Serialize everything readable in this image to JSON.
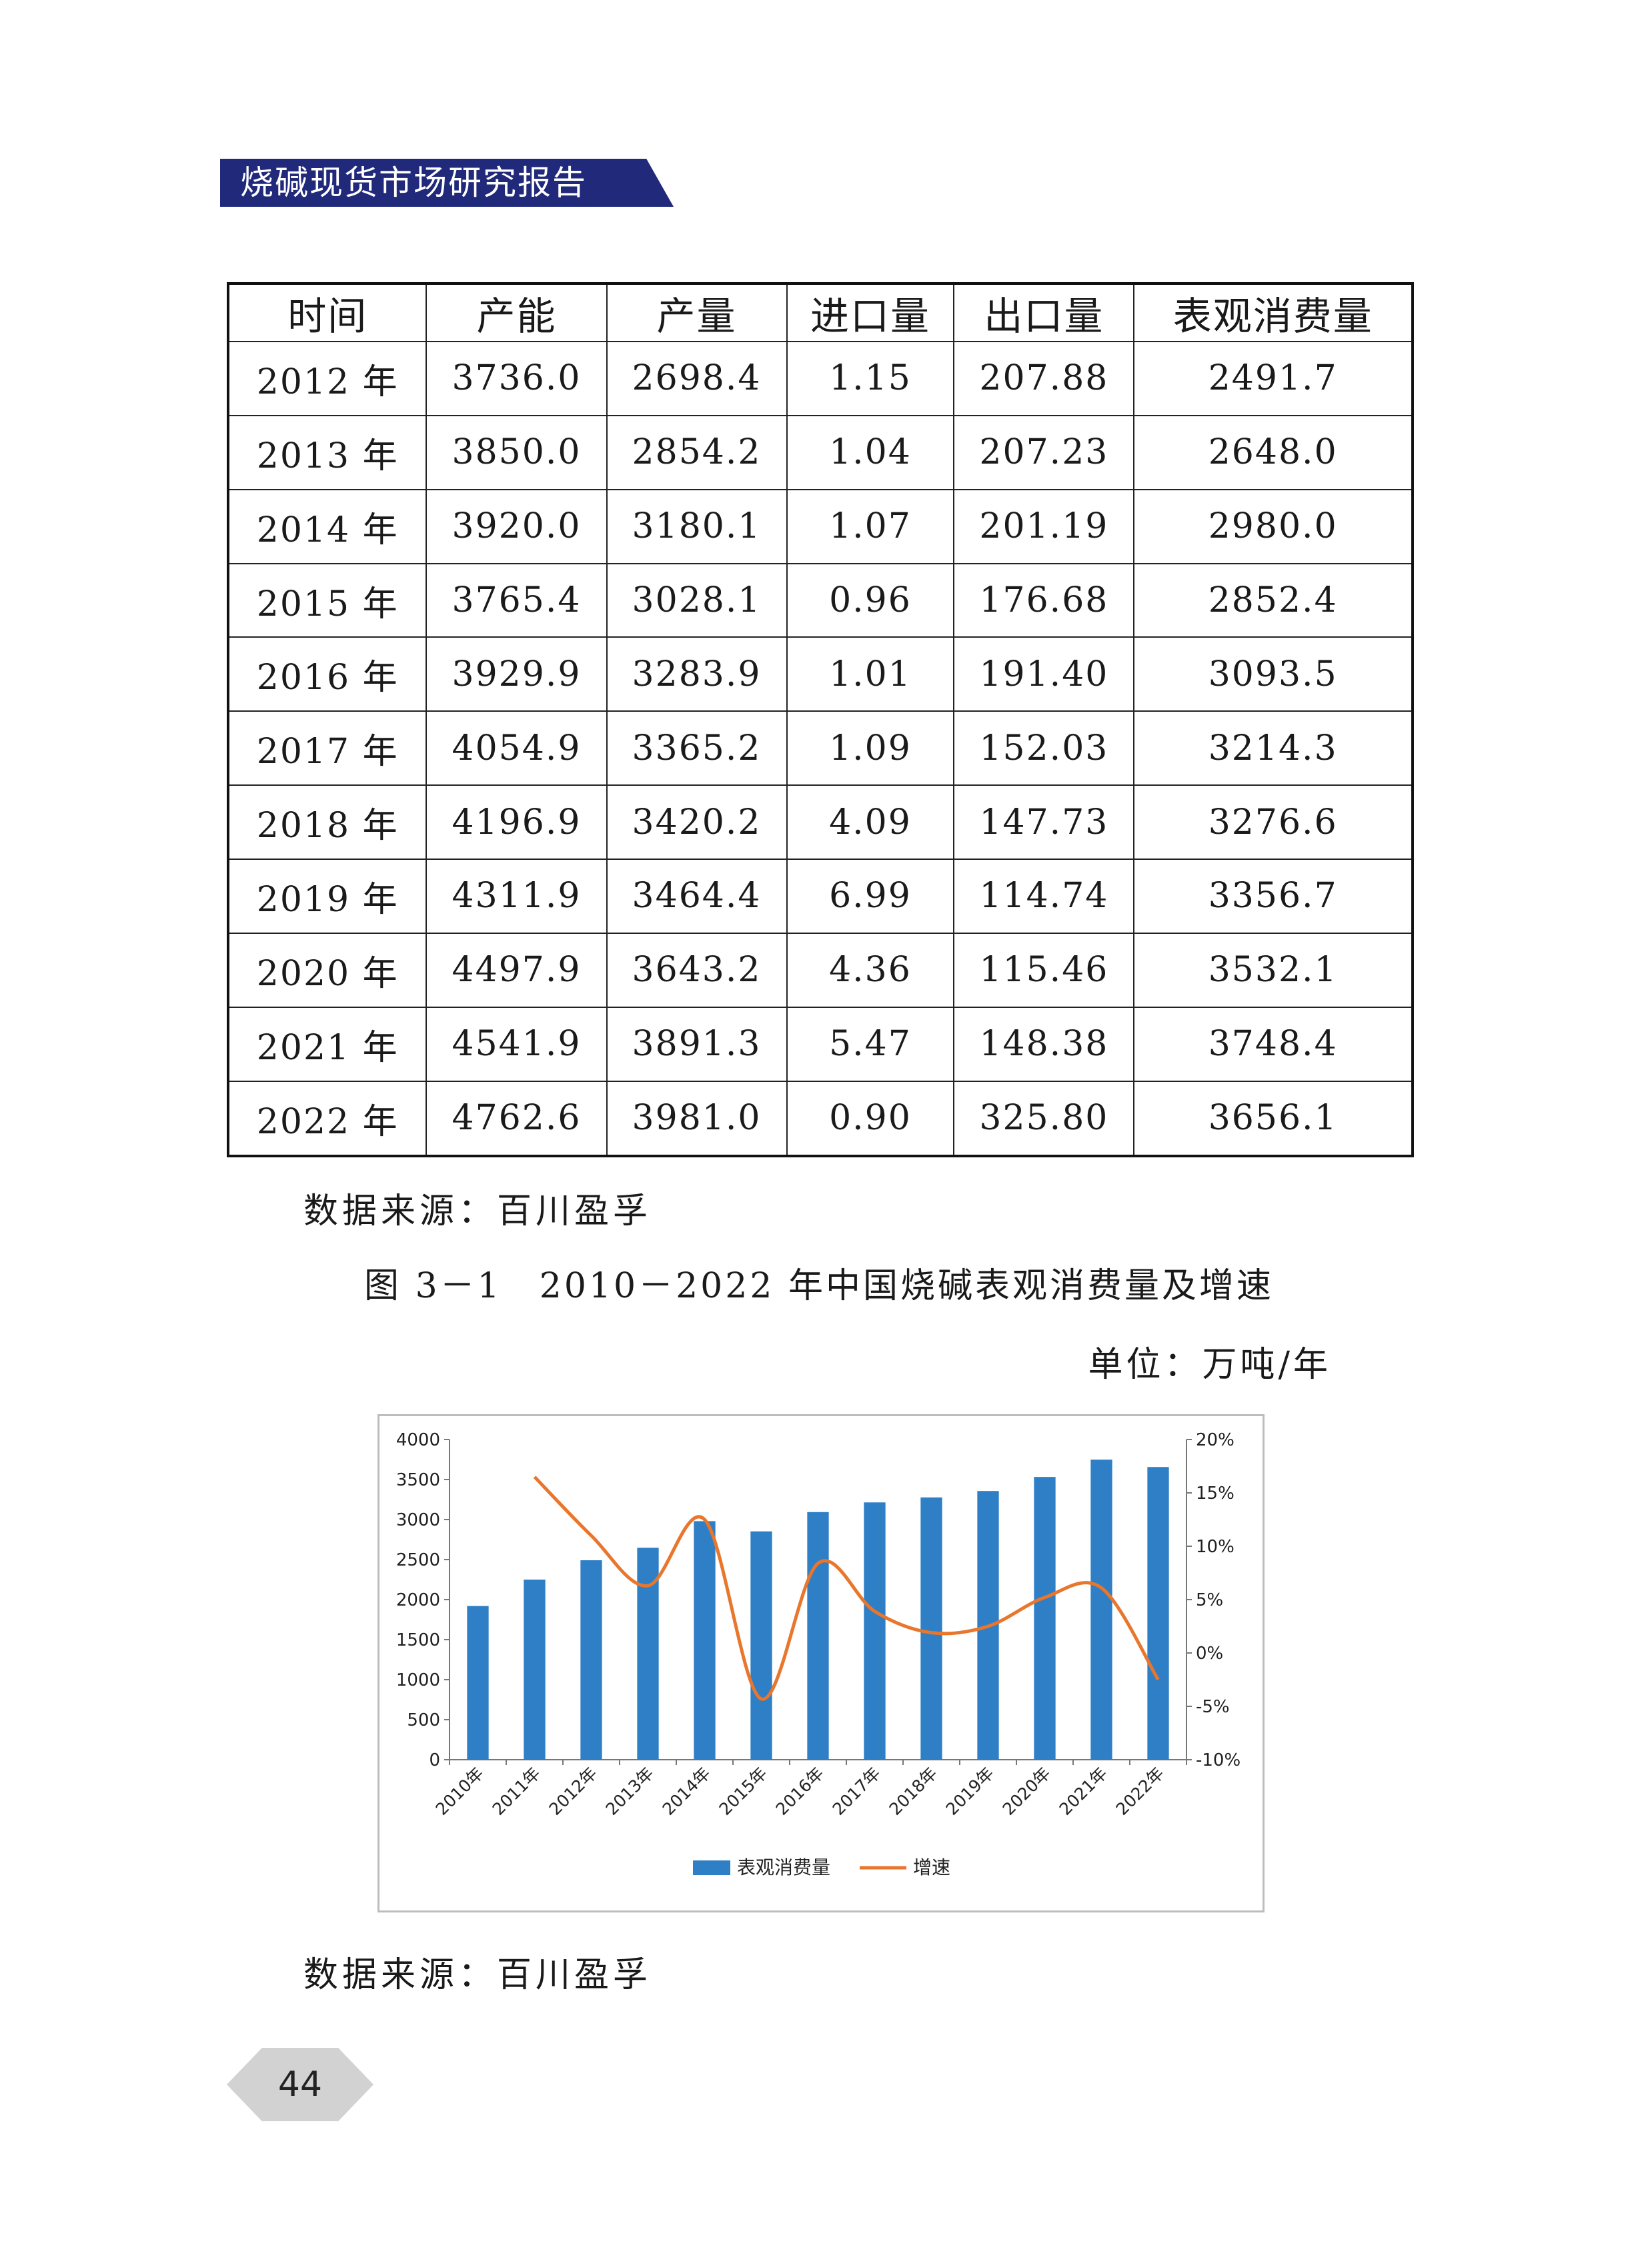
{
  "header": {
    "title": "烧碱现货市场研究报告"
  },
  "table": {
    "headers": [
      "时间",
      "产能",
      "产量",
      "进口量",
      "出口量",
      "表观消费量"
    ],
    "rows": [
      [
        "2012 年",
        "3736.0",
        "2698.4",
        "1.15",
        "207.88",
        "2491.7"
      ],
      [
        "2013 年",
        "3850.0",
        "2854.2",
        "1.04",
        "207.23",
        "2648.0"
      ],
      [
        "2014 年",
        "3920.0",
        "3180.1",
        "1.07",
        "201.19",
        "2980.0"
      ],
      [
        "2015 年",
        "3765.4",
        "3028.1",
        "0.96",
        "176.68",
        "2852.4"
      ],
      [
        "2016 年",
        "3929.9",
        "3283.9",
        "1.01",
        "191.40",
        "3093.5"
      ],
      [
        "2017 年",
        "4054.9",
        "3365.2",
        "1.09",
        "152.03",
        "3214.3"
      ],
      [
        "2018 年",
        "4196.9",
        "3420.2",
        "4.09",
        "147.73",
        "3276.6"
      ],
      [
        "2019 年",
        "4311.9",
        "3464.4",
        "6.99",
        "114.74",
        "3356.7"
      ],
      [
        "2020 年",
        "4497.9",
        "3643.2",
        "4.36",
        "115.46",
        "3532.1"
      ],
      [
        "2021 年",
        "4541.9",
        "3891.3",
        "5.47",
        "148.38",
        "3748.4"
      ],
      [
        "2022 年",
        "4762.6",
        "3981.0",
        "0.90",
        "325.80",
        "3656.1"
      ]
    ]
  },
  "source_1": "数据来源：百川盈孚",
  "figure": {
    "title": "图 3－1　2010－2022 年中国烧碱表观消费量及增速",
    "unit": "单位：万吨/年"
  },
  "chart_data": {
    "type": "bar",
    "categories": [
      "2010年",
      "2011年",
      "2012年",
      "2013年",
      "2014年",
      "2015年",
      "2016年",
      "2017年",
      "2018年",
      "2019年",
      "2020年",
      "2021年",
      "2022年"
    ],
    "series": [
      {
        "name": "表观消费量",
        "type": "bar",
        "axis": "left",
        "color": "#2e7fc6",
        "values": [
          1920,
          2250,
          2491.7,
          2648.0,
          2980.0,
          2852.4,
          3093.5,
          3214.3,
          3276.6,
          3356.7,
          3532.1,
          3748.4,
          3656.1
        ]
      },
      {
        "name": "增速",
        "type": "line",
        "axis": "right",
        "color": "#e8762c",
        "values": [
          null,
          16.5,
          11.0,
          6.3,
          12.5,
          -4.3,
          8.4,
          3.9,
          1.9,
          2.5,
          5.2,
          6.1,
          -2.5
        ]
      }
    ],
    "y_left": {
      "min": 0,
      "max": 4000,
      "ticks": [
        "0",
        "500",
        "1000",
        "1500",
        "2000",
        "2500",
        "3000",
        "3500",
        "4000"
      ]
    },
    "y_right": {
      "min": -10,
      "max": 20,
      "ticks": [
        "-10%",
        "-5%",
        "0%",
        "5%",
        "10%",
        "15%",
        "20%"
      ]
    },
    "legend": {
      "placement": "bottom",
      "items": [
        "表观消费量",
        "增速"
      ]
    },
    "grid": false
  },
  "source_2": "数据来源：百川盈孚",
  "page_number": "44"
}
